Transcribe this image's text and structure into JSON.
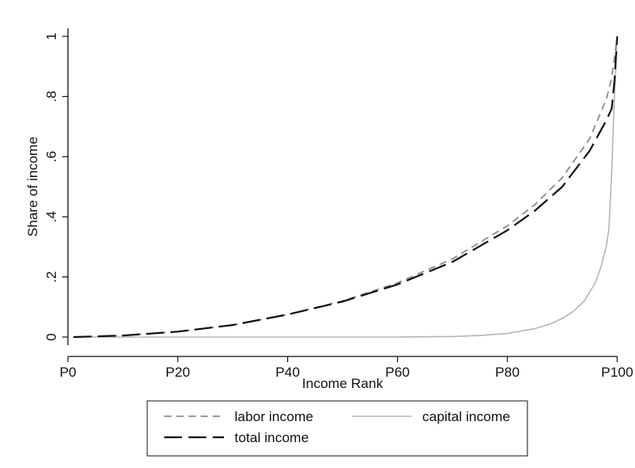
{
  "chart_data": {
    "type": "line",
    "title": "",
    "xlabel": "Income Rank",
    "ylabel": "Share of income",
    "xlim": [
      0,
      100
    ],
    "ylim": [
      0,
      1
    ],
    "x_ticks": [
      {
        "value": 0,
        "label": "P0"
      },
      {
        "value": 20,
        "label": "P20"
      },
      {
        "value": 40,
        "label": "P40"
      },
      {
        "value": 60,
        "label": "P60"
      },
      {
        "value": 80,
        "label": "P80"
      },
      {
        "value": 100,
        "label": "P100"
      }
    ],
    "y_ticks": [
      {
        "value": 0,
        "label": "0"
      },
      {
        "value": 0.2,
        "label": ".2"
      },
      {
        "value": 0.4,
        "label": ".4"
      },
      {
        "value": 0.6,
        "label": ".6"
      },
      {
        "value": 0.8,
        "label": ".8"
      },
      {
        "value": 1,
        "label": "1"
      }
    ],
    "grid": false,
    "legend_position": "bottom",
    "series": [
      {
        "name": "labor income",
        "color": "#8c8c8c",
        "style": "short-dash",
        "x": [
          1,
          10,
          20,
          30,
          40,
          50,
          60,
          70,
          80,
          85,
          90,
          95,
          98,
          99,
          100
        ],
        "y": [
          0,
          0.005,
          0.018,
          0.04,
          0.075,
          0.12,
          0.18,
          0.26,
          0.37,
          0.44,
          0.53,
          0.66,
          0.79,
          0.86,
          1.0
        ]
      },
      {
        "name": "capital income",
        "color": "#b5b5b5",
        "style": "solid",
        "x": [
          1,
          60,
          70,
          75,
          80,
          85,
          88,
          90,
          92,
          94,
          96,
          97,
          98,
          98.5,
          99,
          99.5,
          100
        ],
        "y": [
          0,
          0,
          0.002,
          0.005,
          0.012,
          0.028,
          0.045,
          0.062,
          0.085,
          0.12,
          0.18,
          0.23,
          0.3,
          0.36,
          0.55,
          0.8,
          1.0
        ]
      },
      {
        "name": "total income",
        "color": "#111111",
        "style": "long-dash",
        "x": [
          1,
          10,
          20,
          30,
          40,
          50,
          60,
          70,
          80,
          85,
          90,
          95,
          98,
          99,
          99.5,
          100
        ],
        "y": [
          0,
          0.005,
          0.018,
          0.04,
          0.075,
          0.118,
          0.175,
          0.25,
          0.355,
          0.42,
          0.5,
          0.62,
          0.72,
          0.76,
          0.85,
          1.0
        ]
      }
    ]
  }
}
